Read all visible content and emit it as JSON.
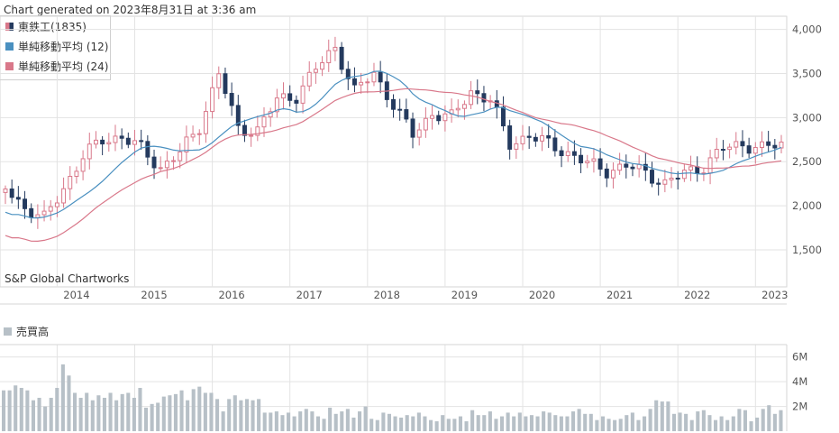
{
  "header": "Chart generated on 2023年8月31日 at 3:36 am",
  "legend": [
    {
      "label": "東鉄工(1835)",
      "color": "#243a5e"
    },
    {
      "label": "単純移動平均 (12)",
      "color": "#4a90c0"
    },
    {
      "label": "単純移動平均 (24)",
      "color": "#d9788a"
    }
  ],
  "watermark": "S&P Global Chartworks",
  "volume_title": "売買高",
  "colors": {
    "up": "#d9788a",
    "down": "#243a5e",
    "sma12": "#4a90c0",
    "sma24": "#d9788a",
    "volume": "#b7c0c7",
    "grid": "#e3e3e3"
  },
  "chart_data": [
    {
      "type": "candlestick",
      "title": "東鉄工(1835)",
      "x_labels": [
        "2014",
        "2015",
        "2016",
        "2017",
        "2018",
        "2019",
        "2020",
        "2021",
        "2022",
        "2023"
      ],
      "y_ticks": [
        "1,500",
        "2,000",
        "2,500",
        "3,000",
        "3,500",
        "4,000"
      ],
      "ylim": [
        1080,
        4150
      ],
      "xlim": [
        "2013-08",
        "2023-08"
      ],
      "series": [
        {
          "name": "東鉄工(1835)",
          "kind": "ohlc_monthly",
          "anchors": [
            [
              "2013-08",
              2200
            ],
            [
              "2013-11",
              1980
            ],
            [
              "2014-02",
              1850
            ],
            [
              "2014-05",
              2200
            ],
            [
              "2014-08",
              2560
            ],
            [
              "2014-11",
              2750
            ],
            [
              "2015-02",
              2780
            ],
            [
              "2015-05",
              2650
            ],
            [
              "2015-08",
              2430
            ],
            [
              "2015-11",
              2600
            ],
            [
              "2016-02",
              2900
            ],
            [
              "2016-05",
              3500
            ],
            [
              "2016-08",
              2870
            ],
            [
              "2016-11",
              2860
            ],
            [
              "2017-02",
              3200
            ],
            [
              "2017-05",
              3250
            ],
            [
              "2017-08",
              3550
            ],
            [
              "2017-11",
              3800
            ],
            [
              "2018-02",
              3300
            ],
            [
              "2018-05",
              3500
            ],
            [
              "2018-08",
              3150
            ],
            [
              "2018-11",
              2800
            ],
            [
              "2019-02",
              3050
            ],
            [
              "2019-05",
              3000
            ],
            [
              "2019-08",
              3300
            ],
            [
              "2019-11",
              3200
            ],
            [
              "2020-02",
              2700
            ],
            [
              "2020-05",
              2800
            ],
            [
              "2020-08",
              2700
            ],
            [
              "2020-11",
              2600
            ],
            [
              "2021-02",
              2480
            ],
            [
              "2021-05",
              2400
            ],
            [
              "2021-08",
              2450
            ],
            [
              "2021-11",
              2380
            ],
            [
              "2022-02",
              2250
            ],
            [
              "2022-05",
              2370
            ],
            [
              "2022-08",
              2450
            ],
            [
              "2022-11",
              2650
            ],
            [
              "2023-02",
              2700
            ],
            [
              "2023-05",
              2650
            ],
            [
              "2023-08",
              2700
            ]
          ]
        },
        {
          "name": "単純移動平均 (12)",
          "kind": "sma",
          "period": 12
        },
        {
          "name": "単純移動平均 (24)",
          "kind": "sma",
          "period": 24
        }
      ]
    },
    {
      "type": "bar",
      "title": "売買高",
      "y_ticks": [
        "2M",
        "4M",
        "6M"
      ],
      "ylim": [
        0,
        7000000
      ],
      "values": [
        3300000,
        3300000,
        3700000,
        3500000,
        3300000,
        2500000,
        2700000,
        2000000,
        2700000,
        3500000,
        5400000,
        4500000,
        3100000,
        2700000,
        3100000,
        2500000,
        2900000,
        2700000,
        3100000,
        2500000,
        3000000,
        3100000,
        2700000,
        3500000,
        1900000,
        2200000,
        2300000,
        2800000,
        2900000,
        3000000,
        3300000,
        2500000,
        3400000,
        3600000,
        3100000,
        3100000,
        2600000,
        1600000,
        2600000,
        2900000,
        2500000,
        2600000,
        2500000,
        2600000,
        1500000,
        1500000,
        1600000,
        1300000,
        1500000,
        1200000,
        1600000,
        1800000,
        1600000,
        1200000,
        1000000,
        1900000,
        1400000,
        1600000,
        1800000,
        1100000,
        1600000,
        2000000,
        1000000,
        900000,
        1500000,
        1400000,
        1200000,
        1100000,
        1300000,
        1200000,
        1500000,
        1200000,
        900000,
        800000,
        1300000,
        1000000,
        1000000,
        1200000,
        800000,
        1700000,
        1300000,
        1300000,
        1600000,
        1000000,
        1200000,
        1500000,
        1200000,
        1500000,
        1200000,
        1300000,
        1200000,
        1600000,
        1500000,
        1300000,
        1200000,
        1200000,
        1600000,
        1800000,
        1400000,
        1400000,
        900000,
        1200000,
        1000000,
        900000,
        1000000,
        1300000,
        1500000,
        900000,
        1200000,
        1800000,
        2500000,
        2400000,
        2400000,
        1400000,
        1500000,
        1400000,
        900000,
        1600000,
        1700000,
        1300000,
        900000,
        1200000,
        900000,
        1200000,
        1800000,
        1700000,
        800000,
        1100000,
        1800000,
        2100000,
        1400000,
        1700000
      ]
    }
  ]
}
